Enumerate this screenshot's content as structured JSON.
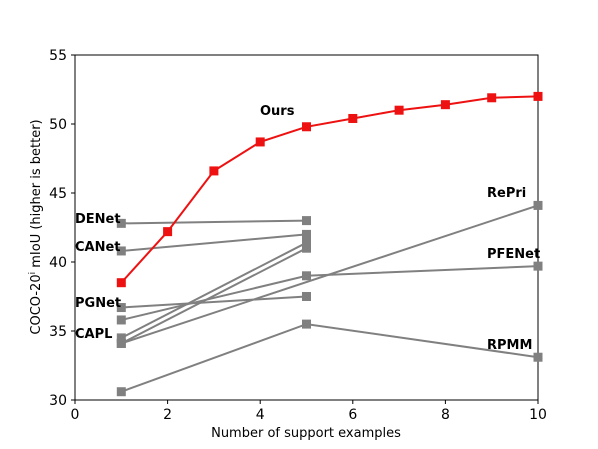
{
  "chart_data": {
    "type": "line",
    "xlabel": "Number of support examples",
    "ylabel_main": "COCO-20",
    "ylabel_sup": "i",
    "ylabel_rest": " mIoU (higher is better)",
    "xlim": [
      0,
      10
    ],
    "ylim": [
      30,
      55
    ],
    "xticks": [
      0,
      2,
      4,
      6,
      8,
      10
    ],
    "yticks": [
      30,
      35,
      40,
      45,
      50,
      55
    ],
    "grid": false,
    "legend": "none",
    "colors": {
      "ours": "#ee1111",
      "baseline": "#808080",
      "marker_edge_ours": "#ee1111",
      "marker_edge_baseline": "#808080"
    },
    "series": [
      {
        "name": "Ours",
        "color": "#ee1111",
        "x": [
          1,
          2,
          3,
          4,
          5,
          6,
          7,
          8,
          9,
          10
        ],
        "y": [
          38.5,
          42.2,
          46.6,
          48.7,
          49.8,
          50.4,
          51.0,
          51.4,
          51.9,
          52.0
        ]
      },
      {
        "name": "DENet",
        "color": "#808080",
        "x": [
          1,
          5
        ],
        "y": [
          42.8,
          43.0
        ]
      },
      {
        "name": "CANet",
        "color": "#808080",
        "x": [
          1,
          5
        ],
        "y": [
          40.8,
          42.0
        ]
      },
      {
        "name": "PGNet",
        "color": "#808080",
        "x": [
          1,
          5
        ],
        "y": [
          36.7,
          37.5
        ]
      },
      {
        "name": "CAPL",
        "color": "#808080",
        "x": [
          1,
          5
        ],
        "y": [
          34.5,
          41.4
        ]
      },
      {
        "name": "RePri",
        "color": "#808080",
        "x": [
          1,
          10
        ],
        "y": [
          34.1,
          44.1
        ]
      },
      {
        "name": "PFENet",
        "color": "#808080",
        "x": [
          1,
          5,
          10
        ],
        "y": [
          35.8,
          39.0,
          39.7
        ]
      },
      {
        "name": "RPMM",
        "color": "#808080",
        "x": [
          1,
          5,
          10
        ],
        "y": [
          30.6,
          35.5,
          33.1
        ]
      },
      {
        "name": "",
        "color": "#808080",
        "x": [
          1,
          5
        ],
        "y": [
          34.1,
          41.0
        ]
      }
    ],
    "labels": [
      {
        "text": "Ours",
        "series": "Ours"
      },
      {
        "text": "DENet",
        "series": "DENet"
      },
      {
        "text": "CANet",
        "series": "CANet"
      },
      {
        "text": "PGNet",
        "series": "PGNet"
      },
      {
        "text": "CAPL",
        "series": "CAPL"
      },
      {
        "text": "RePri",
        "series": "RePri"
      },
      {
        "text": "PFENet",
        "series": "PFENet"
      },
      {
        "text": "RPMM",
        "series": "RPMM"
      }
    ]
  }
}
